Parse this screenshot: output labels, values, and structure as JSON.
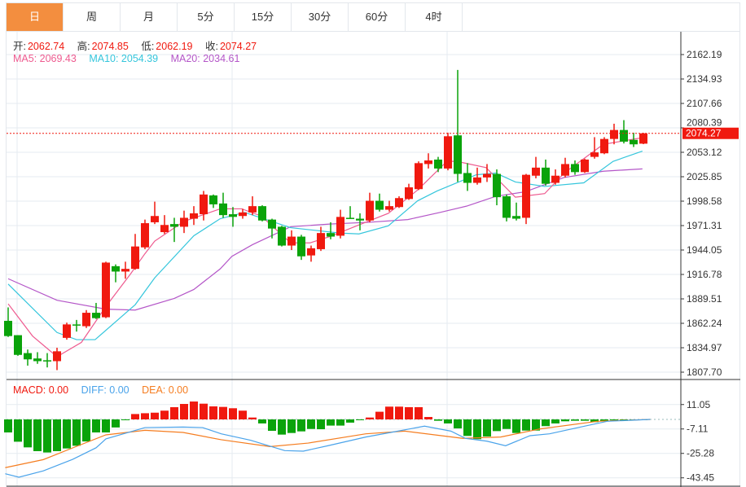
{
  "tabs": [
    {
      "label": "日",
      "active": true
    },
    {
      "label": "周"
    },
    {
      "label": "月"
    },
    {
      "label": "5分"
    },
    {
      "label": "15分"
    },
    {
      "label": "30分"
    },
    {
      "label": "60分"
    },
    {
      "label": "4时"
    }
  ],
  "ohlc_legend": {
    "open_label": "开:",
    "open": "2062.74",
    "high_label": "高:",
    "high": "2074.85",
    "low_label": "低:",
    "low": "2062.19",
    "close_label": "收:",
    "close": "2074.27"
  },
  "ma_legend": {
    "ma5": "MA5: 2069.43",
    "ma10": "MA10: 2054.39",
    "ma20": "MA20: 2034.61"
  },
  "macd_legend": {
    "macd": "MACD: 0.00",
    "diff": "DIFF: 0.00",
    "dea": "DEA: 0.00"
  },
  "colors": {
    "up": "#f0190f",
    "down": "#0aa30a",
    "ma5": "#ee5a8f",
    "ma10": "#35c6dc",
    "ma20": "#b456c8",
    "diff": "#4aa3ea",
    "dea": "#f57d20",
    "active_tab": "#f38e3f"
  },
  "chart_data": [
    {
      "type": "candlestick",
      "title": "",
      "current_price_label": "2074.27",
      "y_ticks": [
        "2162.19",
        "2134.93",
        "2107.66",
        "2080.39",
        "2053.12",
        "2025.85",
        "1998.58",
        "1971.31",
        "1944.05",
        "1916.78",
        "1889.51",
        "1862.24",
        "1834.97",
        "1807.70"
      ],
      "ylim": [
        1807.7,
        2162.19
      ],
      "grid": true,
      "ohlc": [
        [
          1865,
          1880,
          1847,
          1848
        ],
        [
          1849,
          1849,
          1826,
          1827
        ],
        [
          1829,
          1833,
          1815,
          1822
        ],
        [
          1823,
          1830,
          1817,
          1820
        ],
        [
          1821,
          1829,
          1813,
          1820
        ],
        [
          1820,
          1835,
          1810,
          1831
        ],
        [
          1846,
          1863,
          1844,
          1861
        ],
        [
          1861,
          1866,
          1853,
          1860
        ],
        [
          1859,
          1877,
          1857,
          1874
        ],
        [
          1874,
          1885,
          1867,
          1868
        ],
        [
          1869,
          1931,
          1868,
          1930
        ],
        [
          1926,
          1928,
          1908,
          1920
        ],
        [
          1920,
          1931,
          1912,
          1923
        ],
        [
          1923,
          1962,
          1922,
          1948
        ],
        [
          1947,
          1978,
          1945,
          1974
        ],
        [
          1975,
          1998,
          1973,
          1982
        ],
        [
          1964,
          1983,
          1962,
          1972
        ],
        [
          1973,
          1980,
          1953,
          1970
        ],
        [
          1970,
          1988,
          1963,
          1980
        ],
        [
          1979,
          1993,
          1972,
          1985
        ],
        [
          1984,
          2010,
          1977,
          2006
        ],
        [
          2005,
          2006,
          1991,
          1995
        ],
        [
          1996,
          2008,
          1980,
          1983
        ],
        [
          1984,
          1992,
          1970,
          1981
        ],
        [
          1982,
          1990,
          1979,
          1986
        ],
        [
          1986,
          2004,
          1983,
          1993
        ],
        [
          1993,
          1994,
          1976,
          1977
        ],
        [
          1978,
          1979,
          1957,
          1968
        ],
        [
          1970,
          1971,
          1948,
          1949
        ],
        [
          1949,
          1966,
          1944,
          1959
        ],
        [
          1959,
          1961,
          1933,
          1937
        ],
        [
          1938,
          1949,
          1931,
          1946
        ],
        [
          1945,
          1970,
          1943,
          1963
        ],
        [
          1963,
          1975,
          1956,
          1959
        ],
        [
          1960,
          1989,
          1957,
          1981
        ],
        [
          1980,
          1993,
          1979,
          1979.5
        ],
        [
          1979,
          1985,
          1966,
          1977
        ],
        [
          1977,
          2008,
          1975,
          1999
        ],
        [
          1999,
          2007,
          1987,
          1989
        ],
        [
          1989,
          1999,
          1987,
          1993
        ],
        [
          1992,
          2004,
          1991,
          2002
        ],
        [
          2001,
          2018,
          2000,
          2014
        ],
        [
          2012,
          2043,
          2011,
          2041
        ],
        [
          2040,
          2052,
          2035,
          2044
        ],
        [
          2045,
          2048,
          2031,
          2035
        ],
        [
          2035,
          2075,
          2033,
          2071
        ],
        [
          2072,
          2145,
          2020,
          2029
        ],
        [
          2030,
          2041,
          2010,
          2019
        ],
        [
          2019,
          2036,
          2017,
          2025
        ],
        [
          2025,
          2040,
          2020,
          2029
        ],
        [
          2029,
          2034,
          1994,
          2003
        ],
        [
          2004,
          2006,
          1976,
          1980
        ],
        [
          1982,
          1997,
          1977,
          1979
        ],
        [
          1980,
          2029,
          1973,
          2028
        ],
        [
          2027,
          2048,
          2024,
          2036
        ],
        [
          2036,
          2045,
          2016,
          2018
        ],
        [
          2019,
          2034,
          2017,
          2027
        ],
        [
          2027,
          2047,
          2025,
          2040
        ],
        [
          2040,
          2044,
          2028,
          2031
        ],
        [
          2031,
          2046,
          2030,
          2045
        ],
        [
          2048,
          2070,
          2046,
          2053
        ],
        [
          2052,
          2070,
          2051,
          2068
        ],
        [
          2068,
          2085,
          2062,
          2078
        ],
        [
          2078,
          2089,
          2063,
          2065
        ],
        [
          2067,
          2075,
          2059,
          2062
        ],
        [
          2062.74,
          2074.85,
          2062.19,
          2074.27
        ]
      ],
      "ma5": [
        [
          0,
          1884
        ],
        [
          2.5,
          1848
        ],
        [
          5,
          1825
        ],
        [
          7.5,
          1841
        ],
        [
          10,
          1881
        ],
        [
          12.5,
          1917
        ],
        [
          14,
          1940
        ],
        [
          15,
          1954
        ],
        [
          18,
          1976
        ],
        [
          21.7,
          1990
        ],
        [
          23.9,
          1990
        ],
        [
          25.9,
          1982
        ],
        [
          28.9,
          1952
        ],
        [
          30.9,
          1952
        ],
        [
          32.9,
          1959
        ],
        [
          35.9,
          1972
        ],
        [
          38.9,
          1985
        ],
        [
          41.9,
          2011
        ],
        [
          44.9,
          2043
        ],
        [
          45.9,
          2043
        ],
        [
          48.9,
          2036
        ],
        [
          51.9,
          2003
        ],
        [
          54.9,
          2007
        ],
        [
          56.9,
          2030
        ],
        [
          60.9,
          2062
        ],
        [
          64.9,
          2069.43
        ]
      ],
      "ma10": [
        [
          0,
          1906
        ],
        [
          5,
          1852
        ],
        [
          7,
          1844
        ],
        [
          8.9,
          1844
        ],
        [
          13,
          1883
        ],
        [
          15,
          1913
        ],
        [
          19,
          1960
        ],
        [
          21.7,
          1979
        ],
        [
          24.2,
          1986
        ],
        [
          28.9,
          1969
        ],
        [
          33.9,
          1963
        ],
        [
          35.9,
          1962
        ],
        [
          38.9,
          1971
        ],
        [
          41.9,
          1999
        ],
        [
          43.9,
          2010
        ],
        [
          47.9,
          2028
        ],
        [
          49.9,
          2030
        ],
        [
          51.9,
          2020
        ],
        [
          54.9,
          2015
        ],
        [
          58.9,
          2019
        ],
        [
          61.9,
          2043
        ],
        [
          64.9,
          2054.39
        ]
      ],
      "ma20": [
        [
          0,
          1912
        ],
        [
          5,
          1888
        ],
        [
          10,
          1878
        ],
        [
          13,
          1877
        ],
        [
          17,
          1890
        ],
        [
          19,
          1900
        ],
        [
          21.7,
          1923
        ],
        [
          22.9,
          1937
        ],
        [
          25,
          1950
        ],
        [
          28.9,
          1970
        ],
        [
          32.9,
          1973
        ],
        [
          36.9,
          1975
        ],
        [
          40.9,
          1978
        ],
        [
          44.2,
          1986
        ],
        [
          46.9,
          1993
        ],
        [
          49.9,
          2004
        ],
        [
          52.9,
          2009
        ],
        [
          56.9,
          2025
        ],
        [
          60.9,
          2032
        ],
        [
          64.9,
          2034.61
        ]
      ]
    },
    {
      "type": "bar+line",
      "title": "MACD",
      "y_ticks": [
        "11.05",
        "-7.11",
        "-25.28",
        "-43.45"
      ],
      "ylim": [
        -45,
        15
      ],
      "macd_hist": [
        -9.7,
        -16.6,
        -20.8,
        -23.6,
        -24.6,
        -23.6,
        -21.6,
        -19.6,
        -16.4,
        -9.7,
        -9.7,
        -6.0,
        -0.4,
        4.0,
        4.6,
        5.0,
        6.5,
        9.1,
        11.5,
        13.3,
        11.7,
        9.7,
        9.3,
        8.3,
        6.5,
        1.4,
        -3.0,
        -8.5,
        -11.3,
        -10.1,
        -8.9,
        -7.1,
        -7.3,
        -4.6,
        -4.6,
        -2.4,
        -0.1,
        1.4,
        5.7,
        9.5,
        9.5,
        9.1,
        9.1,
        1.8,
        -1.0,
        -3.0,
        -6.7,
        -12.3,
        -14.7,
        -12.7,
        -8.7,
        -7.1,
        -10.1,
        -8.3,
        -8.3,
        -5.0,
        -3.0,
        -1.4,
        -1.0,
        -1.0,
        -2.0,
        -1.4,
        -0.6,
        -0.3,
        -0.2,
        -0.1
      ],
      "diff": [
        [
          -0.3,
          -40.4
        ],
        [
          1.1,
          -43.0
        ],
        [
          3.6,
          -38.3
        ],
        [
          6.6,
          -29.7
        ],
        [
          9.0,
          -21.1
        ],
        [
          10.0,
          -14.5
        ],
        [
          14.0,
          -6.1
        ],
        [
          17.9,
          -5.7
        ],
        [
          19.9,
          -6.1
        ],
        [
          21.8,
          -10.7
        ],
        [
          24.8,
          -15.5
        ],
        [
          28.3,
          -23.2
        ],
        [
          30.2,
          -23.6
        ],
        [
          32.7,
          -19.6
        ],
        [
          36.6,
          -13.1
        ],
        [
          39.6,
          -9.1
        ],
        [
          42.6,
          -5.0
        ],
        [
          45.3,
          -8.7
        ],
        [
          46.8,
          -14.1
        ],
        [
          49.0,
          -16.2
        ],
        [
          50.9,
          -19.6
        ],
        [
          53.4,
          -12.1
        ],
        [
          55.4,
          -10.7
        ],
        [
          58.3,
          -6.1
        ],
        [
          61.3,
          -1.4
        ],
        [
          65.7,
          0
        ]
      ],
      "dea": [
        [
          -0.3,
          -35.9
        ],
        [
          3.6,
          -29.9
        ],
        [
          6.6,
          -21.2
        ],
        [
          10.0,
          -11.5
        ],
        [
          14.0,
          -8.1
        ],
        [
          17.9,
          -9.7
        ],
        [
          21.8,
          -15.1
        ],
        [
          26.8,
          -20.2
        ],
        [
          30.7,
          -17.6
        ],
        [
          36.6,
          -10.7
        ],
        [
          40.6,
          -8.7
        ],
        [
          46.5,
          -14.1
        ],
        [
          50.4,
          -13.1
        ],
        [
          54.4,
          -7.1
        ],
        [
          60.3,
          -1.4
        ],
        [
          65.7,
          0
        ]
      ]
    }
  ]
}
